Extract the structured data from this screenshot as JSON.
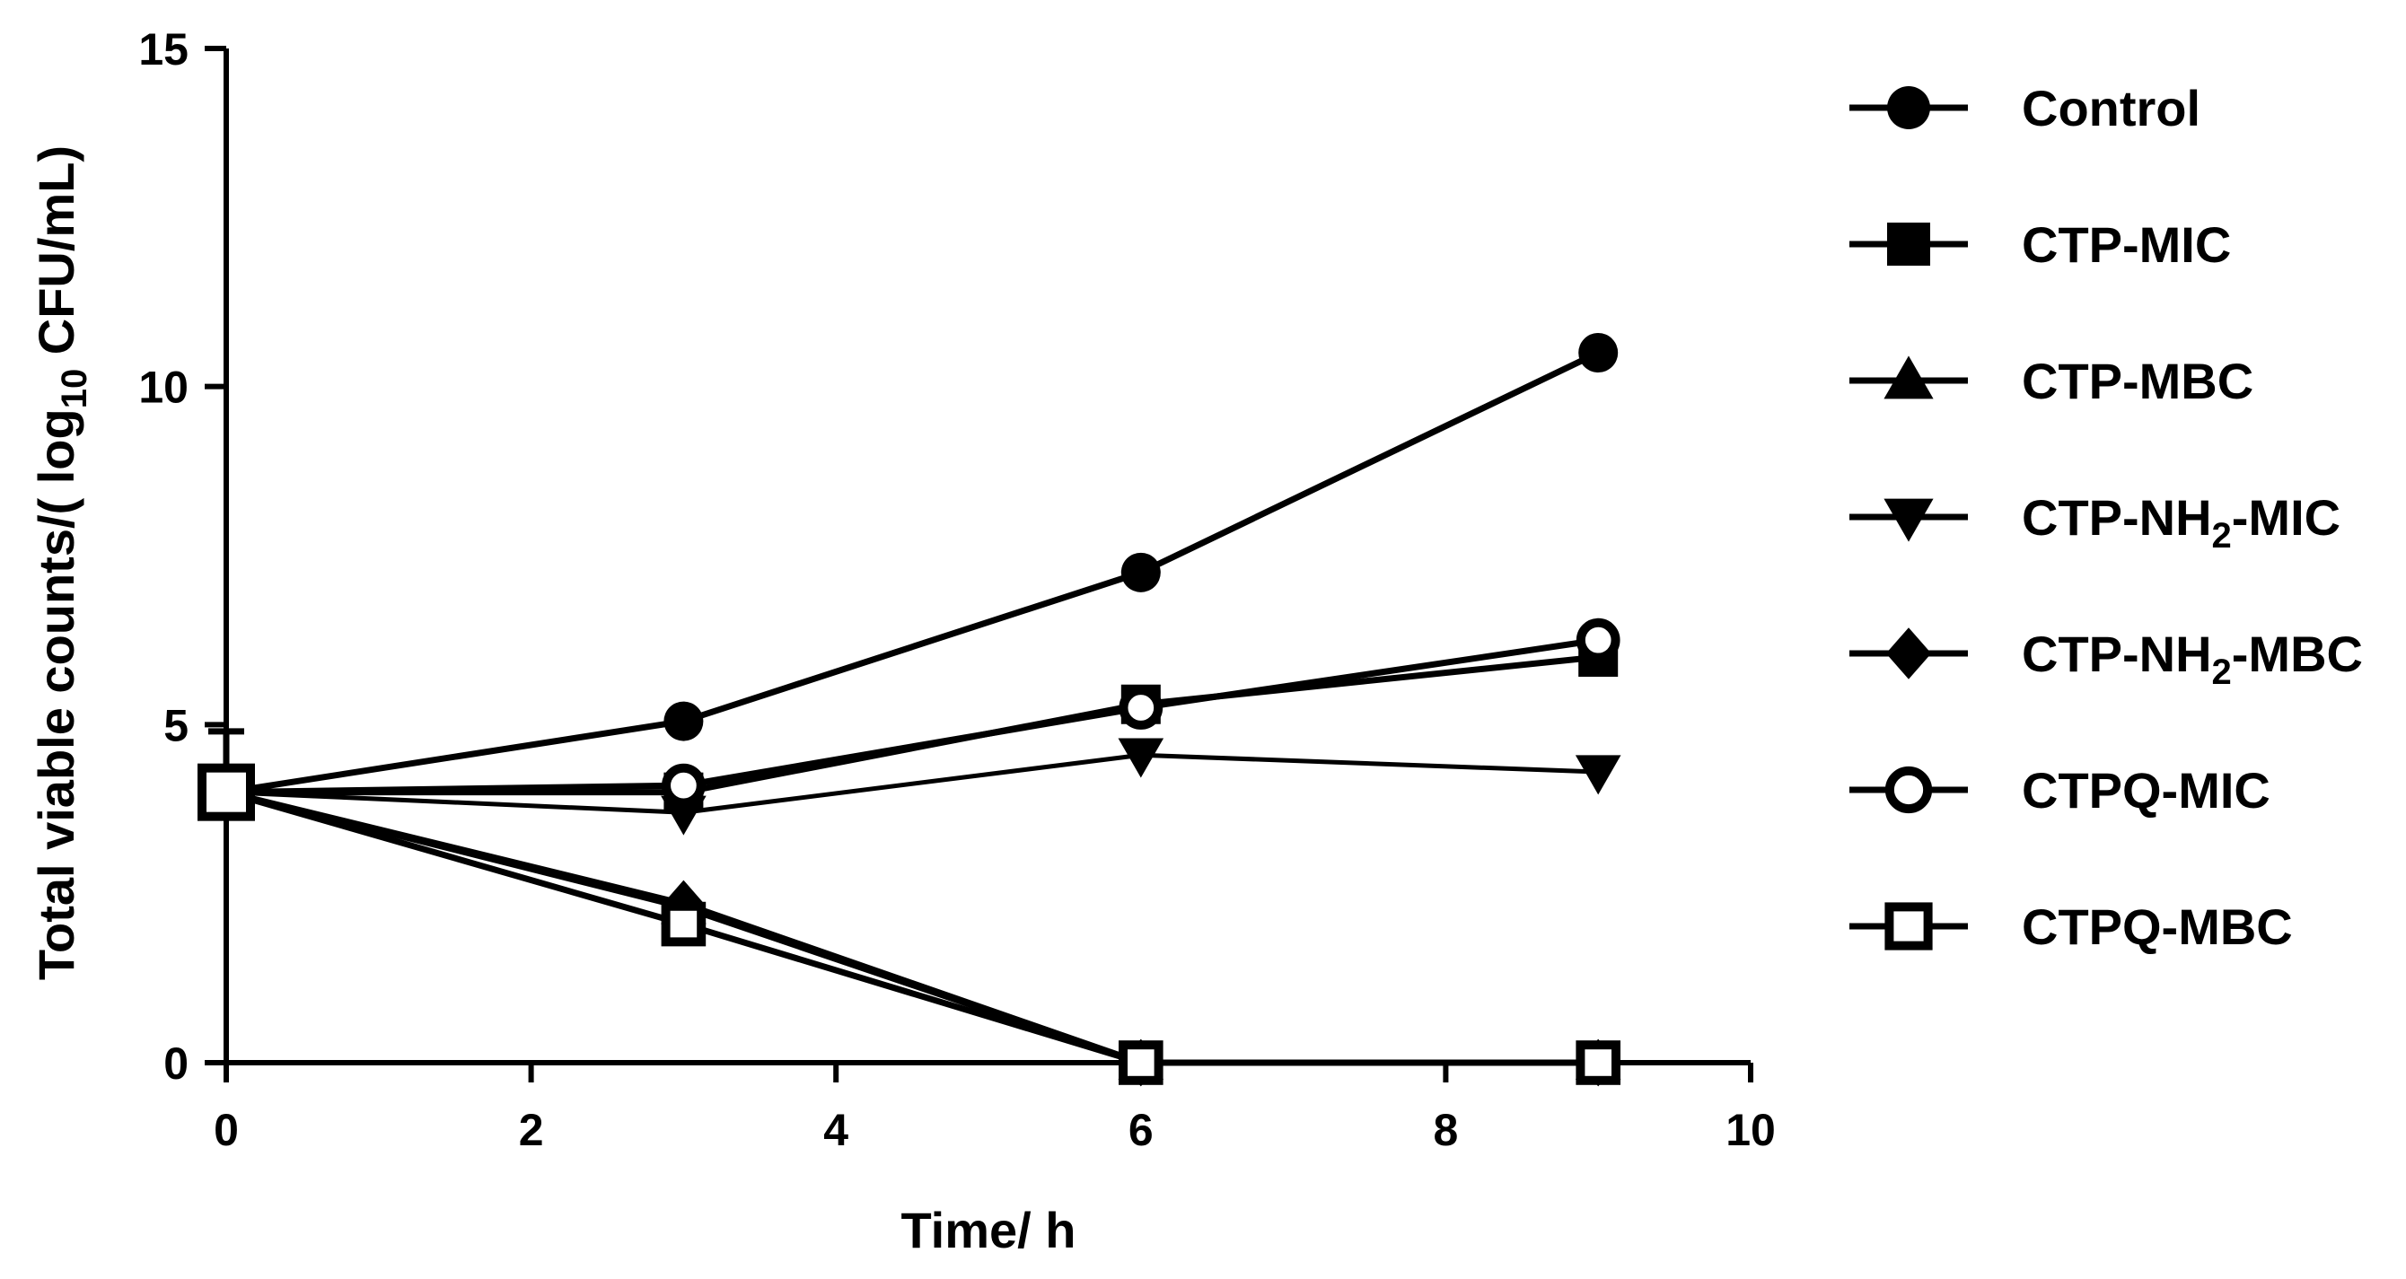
{
  "chart_data": {
    "type": "line",
    "title": "",
    "xlabel": "Time/ h",
    "ylabel": {
      "prefix": "Total viable counts/( log",
      "sub": "10",
      "suffix": " CFU/mL)"
    },
    "xlim": [
      0,
      10
    ],
    "ylim": [
      0,
      15
    ],
    "xticks": [
      "0",
      "2",
      "4",
      "6",
      "8",
      "10"
    ],
    "yticks": [
      "0",
      "5",
      "10",
      "15"
    ],
    "grid": false,
    "legend_position": "right",
    "x": [
      0,
      3,
      6,
      9
    ],
    "series": [
      {
        "name": "Control",
        "legend": {
          "pre": "Control",
          "sub": "",
          "post": ""
        },
        "marker": "circle-filled",
        "values": [
          4.0,
          5.05,
          7.25,
          10.5
        ]
      },
      {
        "name": "CTP-MIC",
        "legend": {
          "pre": "CTP-MIC",
          "sub": "",
          "post": ""
        },
        "marker": "square-filled",
        "values": [
          4.0,
          4.0,
          5.3,
          6.0
        ]
      },
      {
        "name": "CTP-MBC",
        "legend": {
          "pre": "CTP-MBC",
          "sub": "",
          "post": ""
        },
        "marker": "triangle-up-filled",
        "values": [
          4.0,
          2.3,
          0.0,
          0.0
        ]
      },
      {
        "name": "CTP-NH2-MIC",
        "legend": {
          "pre": "CTP-NH",
          "sub": "2",
          "post": "-MIC"
        },
        "marker": "triangle-down-filled",
        "values": [
          4.0,
          3.7,
          4.55,
          4.3
        ]
      },
      {
        "name": "CTP-NH2-MBC",
        "legend": {
          "pre": "CTP-NH",
          "sub": "2",
          "post": "-MBC"
        },
        "marker": "diamond-filled",
        "values": [
          4.0,
          2.35,
          0.0,
          0.0
        ]
      },
      {
        "name": "CTPQ-MIC",
        "legend": {
          "pre": "CTPQ-MIC",
          "sub": "",
          "post": ""
        },
        "marker": "circle-open",
        "values": [
          4.0,
          4.1,
          5.25,
          6.25
        ]
      },
      {
        "name": "CTPQ-MBC",
        "legend": {
          "pre": "CTPQ-MBC",
          "sub": "",
          "post": ""
        },
        "marker": "square-open",
        "values": [
          4.0,
          2.05,
          0.0,
          0.0
        ]
      }
    ],
    "error_bars": [
      {
        "series": "CTP-MIC",
        "x": 0,
        "upper": 4.9
      }
    ],
    "colors": {
      "line": "#000000",
      "background": "#ffffff"
    }
  }
}
